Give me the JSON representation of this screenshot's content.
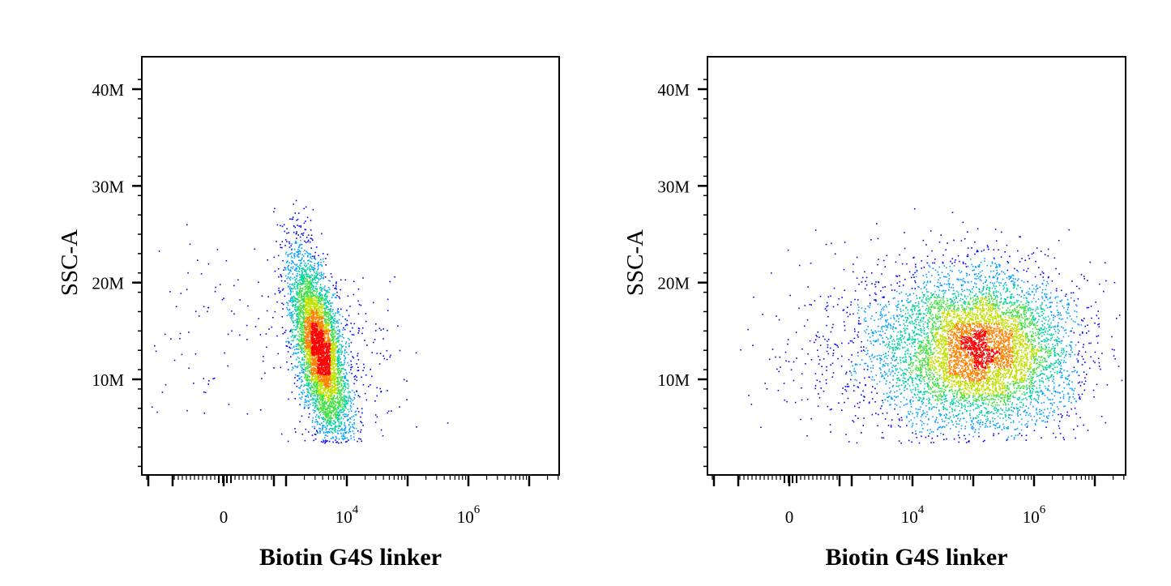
{
  "chart_data": [
    {
      "type": "scatter",
      "panel": "left",
      "xlabel": "Biotin G4S linker",
      "ylabel": "SSC-A",
      "x_scale": "biexponential",
      "x_ticks": [
        {
          "value": 0,
          "label": "0",
          "exp": ""
        },
        {
          "value": 10000,
          "label": "10",
          "exp": "4"
        },
        {
          "value": 1000000,
          "label": "10",
          "exp": "6"
        }
      ],
      "y_ticks": [
        {
          "value": 10000000,
          "label": "10M"
        },
        {
          "value": 20000000,
          "label": "20M"
        },
        {
          "value": 30000000,
          "label": "30M"
        },
        {
          "value": 40000000,
          "label": "40M"
        }
      ],
      "ylim": [
        0,
        40000000
      ],
      "colormap": [
        "#0000ff",
        "#00a0ff",
        "#00d0a0",
        "#40e040",
        "#c0e000",
        "#ff8000",
        "#ff0000"
      ],
      "populations": [
        {
          "x_center": 3500,
          "y_center": 13000000,
          "n": 5200,
          "density": "high",
          "shape": "elongated-diagonal"
        },
        {
          "x_center": 0,
          "y_center": 15000000,
          "n": 90,
          "density": "low",
          "shape": "scattered-negative"
        }
      ]
    },
    {
      "type": "scatter",
      "panel": "right",
      "xlabel": "Biotin G4S linker",
      "ylabel": "SSC-A",
      "x_scale": "biexponential",
      "x_ticks": [
        {
          "value": 0,
          "label": "0",
          "exp": ""
        },
        {
          "value": 10000,
          "label": "10",
          "exp": "4"
        },
        {
          "value": 1000000,
          "label": "10",
          "exp": "6"
        }
      ],
      "y_ticks": [
        {
          "value": 10000000,
          "label": "10M"
        },
        {
          "value": 20000000,
          "label": "20M"
        },
        {
          "value": 30000000,
          "label": "30M"
        },
        {
          "value": 40000000,
          "label": "40M"
        }
      ],
      "ylim": [
        0,
        40000000
      ],
      "colormap": [
        "#0000ff",
        "#00a0ff",
        "#00d0a0",
        "#40e040",
        "#c0e000",
        "#ff8000",
        "#ff0000"
      ],
      "populations": [
        {
          "x_center": 150000,
          "y_center": 13000000,
          "n": 7000,
          "density": "high",
          "shape": "broad-cloud"
        },
        {
          "x_center": 0,
          "y_center": 11000000,
          "n": 25,
          "density": "low",
          "shape": "scattered-negative"
        }
      ]
    }
  ]
}
